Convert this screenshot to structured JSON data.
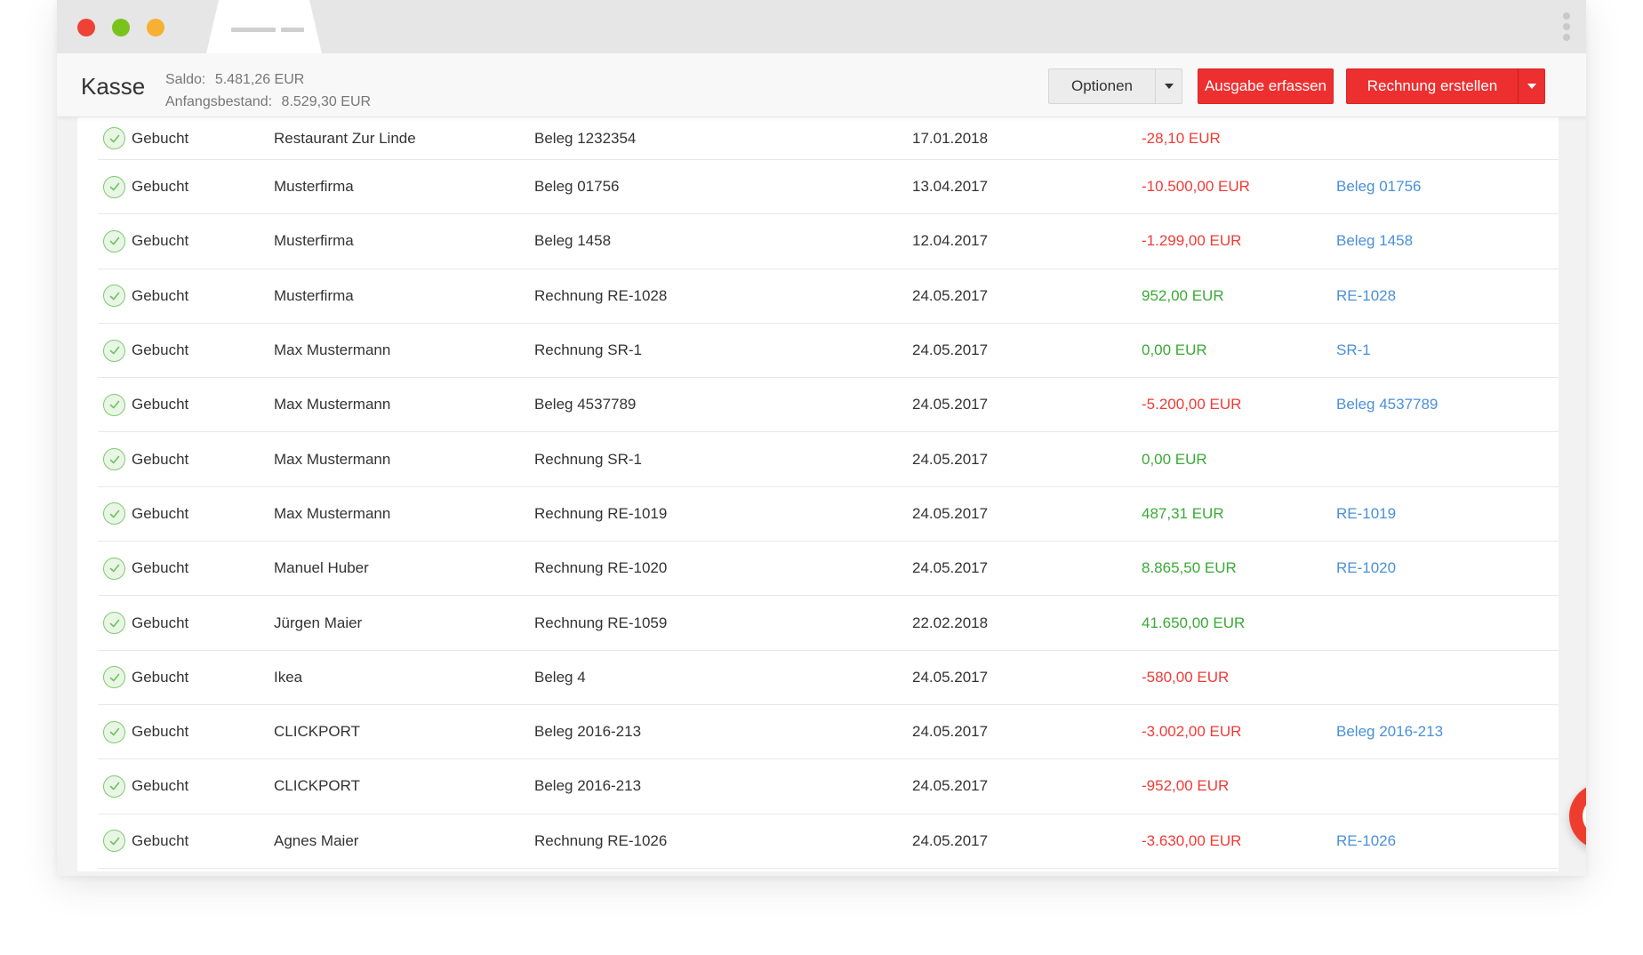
{
  "window": {
    "traffic_lights": {
      "close_color": "#ef4136",
      "minimize_color": "#7ac31c",
      "maximize_color": "#f6b132"
    }
  },
  "header": {
    "title": "Kasse",
    "saldo_label": "Saldo:",
    "saldo_value": "5.481,26 EUR",
    "opening_label": "Anfangsbestand:",
    "opening_value": "8.529,30 EUR",
    "options_label": "Optionen",
    "expense_label": "Ausgabe erfassen",
    "invoice_label": "Rechnung erstellen",
    "accent_color": "#ed2f2f"
  },
  "rows": [
    {
      "status": "Gebucht",
      "name": "Restaurant Zur Linde",
      "doc": "Beleg 1232354",
      "date": "17.01.2018",
      "amount": "-28,10 EUR",
      "sign": "neg",
      "link": ""
    },
    {
      "status": "Gebucht",
      "name": "Musterfirma",
      "doc": "Beleg 01756",
      "date": "13.04.2017",
      "amount": "-10.500,00 EUR",
      "sign": "neg",
      "link": "Beleg 01756"
    },
    {
      "status": "Gebucht",
      "name": "Musterfirma",
      "doc": "Beleg 1458",
      "date": "12.04.2017",
      "amount": "-1.299,00 EUR",
      "sign": "neg",
      "link": "Beleg 1458"
    },
    {
      "status": "Gebucht",
      "name": "Musterfirma",
      "doc": "Rechnung RE-1028",
      "date": "24.05.2017",
      "amount": "952,00 EUR",
      "sign": "pos",
      "link": "RE-1028"
    },
    {
      "status": "Gebucht",
      "name": "Max Mustermann",
      "doc": "Rechnung SR-1",
      "date": "24.05.2017",
      "amount": "0,00 EUR",
      "sign": "pos",
      "link": "SR-1"
    },
    {
      "status": "Gebucht",
      "name": "Max Mustermann",
      "doc": "Beleg 4537789",
      "date": "24.05.2017",
      "amount": "-5.200,00 EUR",
      "sign": "neg",
      "link": "Beleg 4537789"
    },
    {
      "status": "Gebucht",
      "name": "Max Mustermann",
      "doc": "Rechnung SR-1",
      "date": "24.05.2017",
      "amount": "0,00 EUR",
      "sign": "pos",
      "link": ""
    },
    {
      "status": "Gebucht",
      "name": "Max Mustermann",
      "doc": "Rechnung RE-1019",
      "date": "24.05.2017",
      "amount": "487,31 EUR",
      "sign": "pos",
      "link": "RE-1019"
    },
    {
      "status": "Gebucht",
      "name": "Manuel Huber",
      "doc": "Rechnung RE-1020",
      "date": "24.05.2017",
      "amount": "8.865,50 EUR",
      "sign": "pos",
      "link": "RE-1020"
    },
    {
      "status": "Gebucht",
      "name": "Jürgen Maier",
      "doc": "Rechnung RE-1059",
      "date": "22.02.2018",
      "amount": "41.650,00 EUR",
      "sign": "pos",
      "link": ""
    },
    {
      "status": "Gebucht",
      "name": "Ikea",
      "doc": "Beleg 4",
      "date": "24.05.2017",
      "amount": "-580,00 EUR",
      "sign": "neg",
      "link": ""
    },
    {
      "status": "Gebucht",
      "name": "CLICKPORT",
      "doc": "Beleg 2016-213",
      "date": "24.05.2017",
      "amount": "-3.002,00 EUR",
      "sign": "neg",
      "link": "Beleg 2016-213"
    },
    {
      "status": "Gebucht",
      "name": "CLICKPORT",
      "doc": "Beleg 2016-213",
      "date": "24.05.2017",
      "amount": "-952,00 EUR",
      "sign": "neg",
      "link": ""
    },
    {
      "status": "Gebucht",
      "name": "Agnes Maier",
      "doc": "Rechnung RE-1026",
      "date": "24.05.2017",
      "amount": "-3.630,00 EUR",
      "sign": "neg",
      "link": "RE-1026"
    }
  ],
  "colors": {
    "negative": "#ef3b36",
    "positive": "#3aaa35",
    "link": "#4a90d9"
  },
  "help": {
    "icon": "question-circle-icon",
    "glyph": "?"
  }
}
